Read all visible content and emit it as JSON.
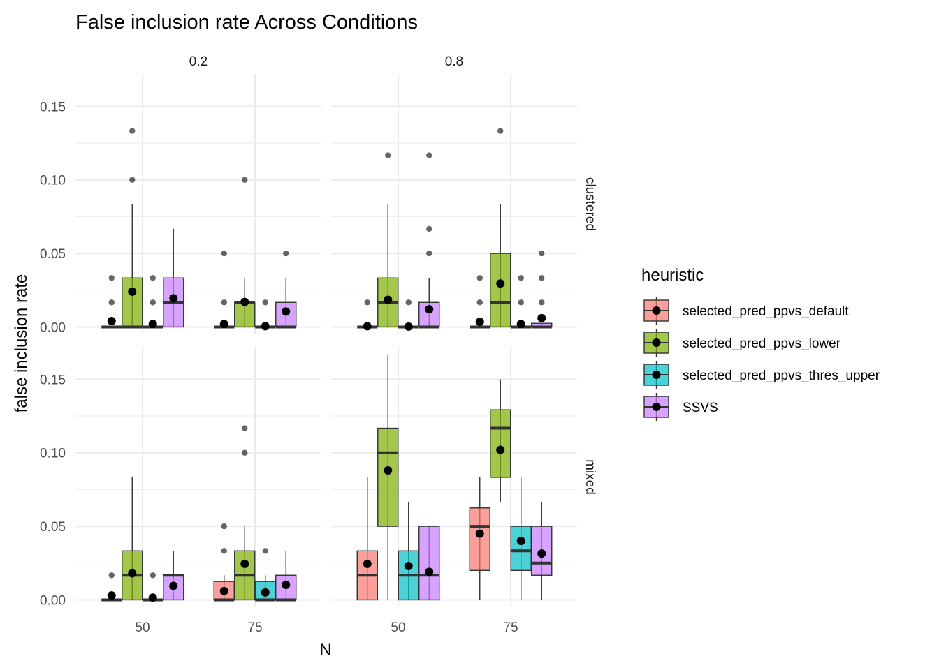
{
  "chart_data": {
    "type": "box",
    "title": "False inclusion rate Across Conditions",
    "xlabel": "N",
    "ylabel": "false inclusion rate",
    "ylim": [
      -0.005,
      0.172
    ],
    "y_ticks": [
      0.0,
      0.05,
      0.1,
      0.15
    ],
    "y_tick_labels": [
      "0.00",
      "0.05",
      "0.10",
      "0.15"
    ],
    "x_categories": [
      "50",
      "75"
    ],
    "col_facets": [
      "0.2",
      "0.8"
    ],
    "row_facets": [
      "clustered",
      "mixed"
    ],
    "grid": true,
    "legend": {
      "title": "heuristic",
      "position": "right"
    },
    "series": [
      {
        "name": "selected_pred_ppvs_default",
        "color": "#F8766D"
      },
      {
        "name": "selected_pred_ppvs_lower",
        "color": "#7CAE00"
      },
      {
        "name": "selected_pred_ppvs_thres_upper",
        "color": "#00BFC4"
      },
      {
        "name": "SSVS",
        "color": "#C77CFF"
      }
    ],
    "panels": [
      {
        "col": 0,
        "row": 0,
        "groups": [
          {
            "n": 0,
            "s": 0,
            "box": [
              0,
              0,
              0,
              0,
              0
            ],
            "mean": 0.004,
            "outliers": [
              0.0167,
              0.0333
            ]
          },
          {
            "n": 0,
            "s": 1,
            "box": [
              0,
              0,
              0,
              0.0333,
              0.0833
            ],
            "mean": 0.024,
            "outliers": [
              0.1,
              0.1333
            ]
          },
          {
            "n": 0,
            "s": 2,
            "box": [
              0,
              0,
              0,
              0,
              0
            ],
            "mean": 0.002,
            "outliers": [
              0.0167,
              0.0333
            ]
          },
          {
            "n": 0,
            "s": 3,
            "box": [
              0,
              0,
              0.0167,
              0.0333,
              0.0667
            ],
            "mean": 0.0195,
            "outliers": []
          },
          {
            "n": 1,
            "s": 0,
            "box": [
              0,
              0,
              0,
              0,
              0
            ],
            "mean": 0.002,
            "outliers": [
              0.0167,
              0.05
            ]
          },
          {
            "n": 1,
            "s": 1,
            "box": [
              0,
              0,
              0.0167,
              0.0167,
              0.0333
            ],
            "mean": 0.017,
            "outliers": [
              0.1
            ]
          },
          {
            "n": 1,
            "s": 2,
            "box": [
              0,
              0,
              0,
              0,
              0
            ],
            "mean": 0.0005,
            "outliers": [
              0.0167
            ]
          },
          {
            "n": 1,
            "s": 3,
            "box": [
              0,
              0,
              0,
              0.0167,
              0.0333
            ],
            "mean": 0.0105,
            "outliers": [
              0.05
            ]
          }
        ]
      },
      {
        "col": 1,
        "row": 0,
        "groups": [
          {
            "n": 0,
            "s": 0,
            "box": [
              0,
              0,
              0,
              0,
              0
            ],
            "mean": 0.0005,
            "outliers": [
              0.0167
            ]
          },
          {
            "n": 0,
            "s": 1,
            "box": [
              0,
              0,
              0.0167,
              0.0333,
              0.0833
            ],
            "mean": 0.0185,
            "outliers": [
              0.1167
            ]
          },
          {
            "n": 0,
            "s": 2,
            "box": [
              0,
              0,
              0,
              0,
              0
            ],
            "mean": 0.0003,
            "outliers": [
              0.0167
            ]
          },
          {
            "n": 0,
            "s": 3,
            "box": [
              0,
              0,
              0,
              0.0167,
              0.0333
            ],
            "mean": 0.012,
            "outliers": [
              0.05,
              0.0667,
              0.1167
            ]
          },
          {
            "n": 1,
            "s": 0,
            "box": [
              0,
              0,
              0,
              0,
              0
            ],
            "mean": 0.0035,
            "outliers": [
              0.0167,
              0.0333
            ]
          },
          {
            "n": 1,
            "s": 1,
            "box": [
              0,
              0,
              0.0167,
              0.05,
              0.0833
            ],
            "mean": 0.0295,
            "outliers": [
              0.1333
            ]
          },
          {
            "n": 1,
            "s": 2,
            "box": [
              0,
              0,
              0,
              0,
              0
            ],
            "mean": 0.002,
            "outliers": [
              0.0167,
              0.0333
            ]
          },
          {
            "n": 1,
            "s": 3,
            "box": [
              0,
              0,
              0,
              0.0025,
              0.0025
            ],
            "mean": 0.006,
            "outliers": [
              0.0167,
              0.0333,
              0.05
            ]
          }
        ]
      },
      {
        "col": 0,
        "row": 1,
        "groups": [
          {
            "n": 0,
            "s": 0,
            "box": [
              0,
              0,
              0,
              0,
              0
            ],
            "mean": 0.003,
            "outliers": [
              0.0167
            ]
          },
          {
            "n": 0,
            "s": 1,
            "box": [
              0,
              0,
              0.0167,
              0.0333,
              0.0833
            ],
            "mean": 0.018,
            "outliers": []
          },
          {
            "n": 0,
            "s": 2,
            "box": [
              0,
              0,
              0,
              0,
              0
            ],
            "mean": 0.0015,
            "outliers": [
              0.0167
            ]
          },
          {
            "n": 0,
            "s": 3,
            "box": [
              0,
              0,
              0.0167,
              0.0167,
              0.0333
            ],
            "mean": 0.0095,
            "outliers": []
          },
          {
            "n": 1,
            "s": 0,
            "box": [
              0,
              0,
              0,
              0.0125,
              0.0167
            ],
            "mean": 0.006,
            "outliers": [
              0.0333,
              0.05
            ]
          },
          {
            "n": 1,
            "s": 1,
            "box": [
              0,
              0,
              0.0167,
              0.0333,
              0.05
            ],
            "mean": 0.0245,
            "outliers": [
              0.1,
              0.1167
            ]
          },
          {
            "n": 1,
            "s": 2,
            "box": [
              0,
              0,
              0,
              0.0125,
              0.0167
            ],
            "mean": 0.005,
            "outliers": [
              0.0333
            ]
          },
          {
            "n": 1,
            "s": 3,
            "box": [
              0,
              0,
              0,
              0.0167,
              0.0333
            ],
            "mean": 0.0102,
            "outliers": []
          }
        ]
      },
      {
        "col": 1,
        "row": 1,
        "groups": [
          {
            "n": 0,
            "s": 0,
            "box": [
              0,
              0,
              0.0167,
              0.0333,
              0.0833
            ],
            "mean": 0.0245,
            "outliers": []
          },
          {
            "n": 0,
            "s": 1,
            "box": [
              0,
              0.05,
              0.1,
              0.1167,
              0.1667
            ],
            "mean": 0.088,
            "outliers": []
          },
          {
            "n": 0,
            "s": 2,
            "box": [
              0,
              0,
              0.0167,
              0.0333,
              0.0667
            ],
            "mean": 0.023,
            "outliers": []
          },
          {
            "n": 0,
            "s": 3,
            "box": [
              0,
              0,
              0.0167,
              0.05,
              0.05
            ],
            "mean": 0.019,
            "outliers": []
          },
          {
            "n": 1,
            "s": 0,
            "box": [
              0,
              0.02,
              0.05,
              0.0625,
              0.0833
            ],
            "mean": 0.045,
            "outliers": []
          },
          {
            "n": 1,
            "s": 1,
            "box": [
              0.0667,
              0.0833,
              0.1167,
              0.1292,
              0.15
            ],
            "mean": 0.102,
            "outliers": []
          },
          {
            "n": 1,
            "s": 2,
            "box": [
              0,
              0.02,
              0.0333,
              0.05,
              0.0833
            ],
            "mean": 0.04,
            "outliers": []
          },
          {
            "n": 1,
            "s": 3,
            "box": [
              0,
              0.0167,
              0.025,
              0.05,
              0.0667
            ],
            "mean": 0.0315,
            "outliers": []
          }
        ]
      }
    ]
  }
}
